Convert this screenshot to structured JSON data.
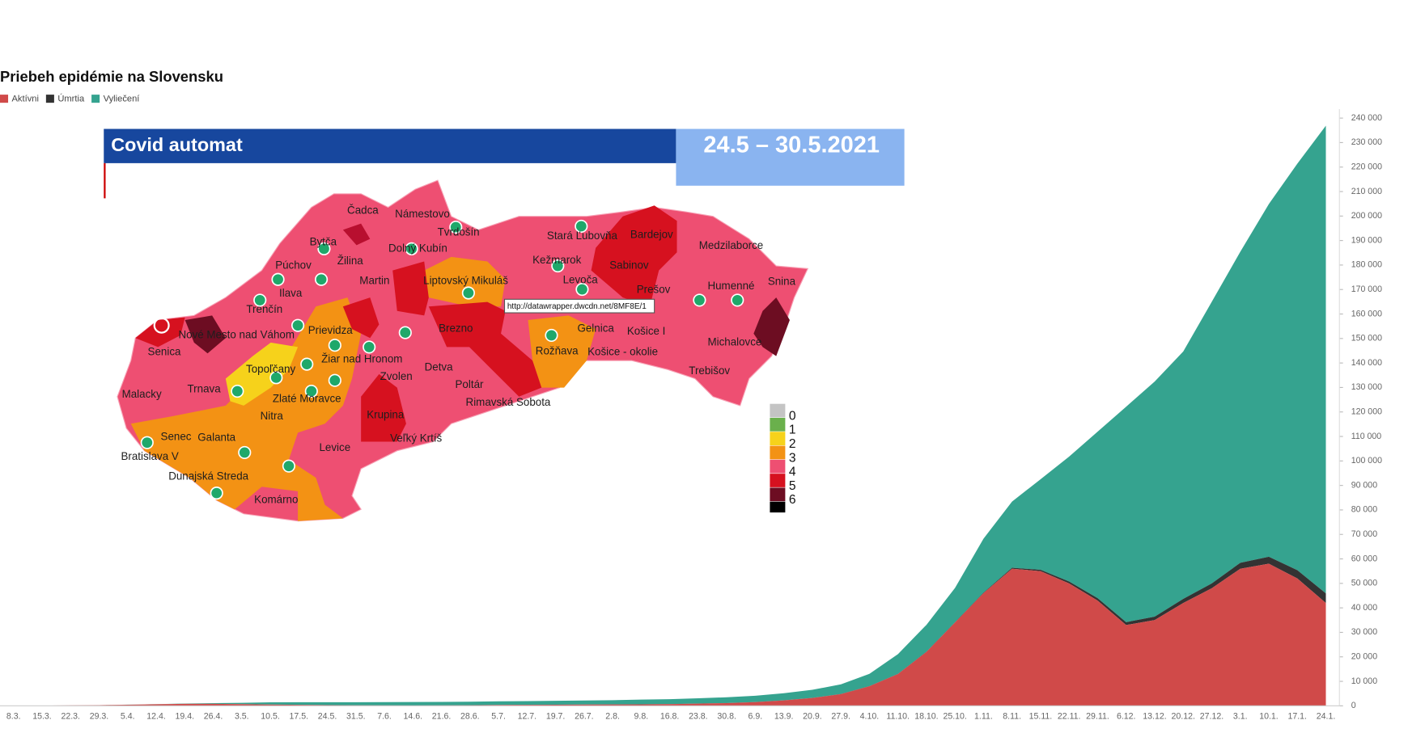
{
  "chart_data": {
    "type": "area",
    "stacked": true,
    "title": "Priebeh epidémie na Slovensku",
    "categories": [
      "8.3.",
      "15.3.",
      "22.3.",
      "29.3.",
      "5.4.",
      "12.4.",
      "19.4.",
      "26.4.",
      "3.5.",
      "10.5.",
      "17.5.",
      "24.5.",
      "31.5.",
      "7.6.",
      "14.6.",
      "21.6.",
      "28.6.",
      "5.7.",
      "12.7.",
      "19.7.",
      "26.7.",
      "2.8.",
      "9.8.",
      "16.8.",
      "23.8.",
      "30.8.",
      "6.9.",
      "13.9.",
      "20.9.",
      "27.9.",
      "4.10.",
      "11.10.",
      "18.10.",
      "25.10.",
      "1.11.",
      "8.11.",
      "15.11.",
      "22.11.",
      "29.11.",
      "6.12.",
      "13.12.",
      "20.12.",
      "27.12.",
      "3.1.",
      "10.1.",
      "17.1.",
      "24.1."
    ],
    "series": [
      {
        "name": "Aktívni",
        "color": "#d04a49",
        "values": [
          5,
          60,
          180,
          280,
          450,
          650,
          800,
          800,
          700,
          500,
          400,
          300,
          200,
          150,
          120,
          150,
          250,
          350,
          400,
          450,
          500,
          550,
          600,
          700,
          900,
          1100,
          1500,
          2200,
          3200,
          4800,
          8000,
          13000,
          22000,
          34000,
          46000,
          56000,
          55000,
          50000,
          43000,
          33000,
          35000,
          42000,
          48000,
          56000,
          58000,
          52000,
          42000
        ]
      },
      {
        "name": "Úmrtia",
        "color": "#333333",
        "values": [
          0,
          0,
          0,
          0,
          1,
          2,
          4,
          6,
          10,
          24,
          27,
          28,
          28,
          28,
          28,
          28,
          28,
          28,
          28,
          28,
          28,
          29,
          31,
          33,
          34,
          36,
          37,
          38,
          41,
          45,
          55,
          80,
          110,
          160,
          250,
          400,
          550,
          750,
          950,
          1150,
          1400,
          1700,
          2000,
          2400,
          2900,
          3400,
          3900
        ]
      },
      {
        "name": "Vyliečení",
        "color": "#35a38f",
        "values": [
          0,
          0,
          5,
          10,
          20,
          60,
          150,
          300,
          500,
          900,
          1050,
          1150,
          1250,
          1330,
          1380,
          1400,
          1420,
          1450,
          1500,
          1580,
          1650,
          1750,
          1900,
          2000,
          2150,
          2350,
          2600,
          2900,
          3300,
          3900,
          5000,
          8000,
          11000,
          14000,
          22000,
          27000,
          37000,
          51000,
          68000,
          88000,
          96000,
          101000,
          115000,
          127000,
          144000,
          166000,
          191000
        ]
      }
    ],
    "ylim": [
      0,
      240000
    ],
    "yticks": [
      0,
      {
        "value": 10000,
        "label": "10 000"
      },
      {
        "value": 20000,
        "label": "20 000"
      },
      {
        "value": 30000,
        "label": "30 000"
      },
      {
        "value": 40000,
        "label": "40 000"
      },
      {
        "value": 50000,
        "label": "50 000"
      },
      {
        "value": 60000,
        "label": "60 000"
      },
      {
        "value": 70000,
        "label": "70 000"
      },
      {
        "value": 80000,
        "label": "80 000"
      },
      {
        "value": 90000,
        "label": "90 000"
      },
      {
        "value": 100000,
        "label": "100 000"
      },
      {
        "value": 110000,
        "label": "110 000"
      },
      {
        "value": 120000,
        "label": "120 000"
      },
      {
        "value": 130000,
        "label": "130 000"
      },
      {
        "value": 140000,
        "label": "140 000"
      },
      {
        "value": 150000,
        "label": "150 000"
      },
      {
        "value": 160000,
        "label": "160 000"
      },
      {
        "value": 170000,
        "label": "170 000"
      },
      {
        "value": 180000,
        "label": "180 000"
      },
      {
        "value": 190000,
        "label": "190 000"
      },
      {
        "value": 200000,
        "label": "200 000"
      },
      {
        "value": 210000,
        "label": "210 000"
      },
      {
        "value": 220000,
        "label": "220 000"
      },
      {
        "value": 230000,
        "label": "230 000"
      },
      {
        "value": 240000,
        "label": "240 000"
      }
    ],
    "y_axis_side": "right",
    "legend": "top-left"
  },
  "map": {
    "header": "Covid automat",
    "period": "24.5 – 30.5.2021",
    "tooltip": "http://datawrapper.dwcdn.net/8MF8E/1",
    "districts": [
      "Čadca",
      "Námestovo",
      "Tvrdošín",
      "Bytča",
      "Dolný Kubín",
      "Žilina",
      "Púchov",
      "Martin",
      "Ilava",
      "Liptovský Mikuláš",
      "Stará Ľubovňa",
      "Bardejov",
      "Kežmarok",
      "Sabinov",
      "Levoča",
      "Prešov",
      "Medzilaborce",
      "Humenné",
      "Snina",
      "Trenčín",
      "Nové Mesto nad Váhom",
      "Prievidza",
      "Brezno",
      "Gelnica",
      "Košice I",
      "Michalovce",
      "Senica",
      "Žiar nad Hronom",
      "Rožňava",
      "Košice - okolie",
      "Topoľčany",
      "Zvolen",
      "Detva",
      "Trebišov",
      "Malacky",
      "Trnava",
      "Zlaté Moravce",
      "Poltár",
      "Rimavská Sobota",
      "Nitra",
      "Krupina",
      "Senec",
      "Galanta",
      "Veľký Krtíš",
      "Bratislava V",
      "Levice",
      "Dunajská Streda",
      "Komárno"
    ],
    "legend": [
      {
        "label": "0",
        "color": "#c4c4c4"
      },
      {
        "label": "1",
        "color": "#6ab04c"
      },
      {
        "label": "2",
        "color": "#f6d21b"
      },
      {
        "label": "3",
        "color": "#f39214"
      },
      {
        "label": "4",
        "color": "#ee4f72"
      },
      {
        "label": "5",
        "color": "#d6111f"
      },
      {
        "label": "6",
        "color": "#6d0d22"
      }
    ]
  }
}
